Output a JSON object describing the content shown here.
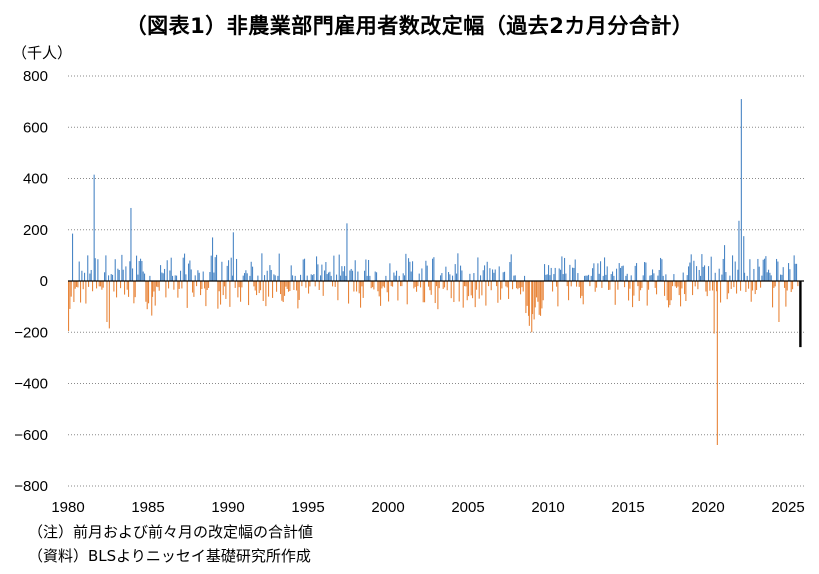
{
  "chart_data": {
    "type": "bar",
    "title": "（図表1）非農業部門雇用者数改定幅（過去2カ月分合計）",
    "ylabel": "（千人）",
    "xlabel": "",
    "ylim": [
      -800,
      800
    ],
    "xlim": [
      1980,
      2026
    ],
    "y_ticks": [
      "800",
      "600",
      "400",
      "200",
      "0",
      "−200",
      "−400",
      "−600",
      "−800"
    ],
    "x_ticks": [
      "1980",
      "1985",
      "1990",
      "1995",
      "2000",
      "2005",
      "2010",
      "2015",
      "2020",
      "2025"
    ],
    "grid": "horizontal dotted",
    "colors": {
      "positive": "#4a86c5",
      "negative": "#e8853a",
      "latest": "#000000"
    },
    "notes": [
      "（注）前月および前々月の改定幅の合計値",
      "（資料）BLSよりニッセイ基礎研究所作成"
    ],
    "highlights": [
      {
        "date": "1980.00",
        "value": -195
      },
      {
        "date": "1980.25",
        "value": 185
      },
      {
        "date": "1981.20",
        "value": 100
      },
      {
        "date": "1981.60",
        "value": 415
      },
      {
        "date": "1982.40",
        "value": -160
      },
      {
        "date": "1982.55",
        "value": -185
      },
      {
        "date": "1983.90",
        "value": 285
      },
      {
        "date": "1985.20",
        "value": -135
      },
      {
        "date": "1989.00",
        "value": 170
      },
      {
        "date": "1990.30",
        "value": 190
      },
      {
        "date": "1997.40",
        "value": 225
      },
      {
        "date": "2008.80",
        "value": -175
      },
      {
        "date": "2008.95",
        "value": -200
      },
      {
        "date": "2009.10",
        "value": -150
      },
      {
        "date": "2020.35",
        "value": -205
      },
      {
        "date": "2020.55",
        "value": -640
      },
      {
        "date": "2021.00",
        "value": 140
      },
      {
        "date": "2021.90",
        "value": 235
      },
      {
        "date": "2022.05",
        "value": 710
      },
      {
        "date": "2022.20",
        "value": 175
      },
      {
        "date": "2024.40",
        "value": -160
      },
      {
        "date": "2025.35",
        "value": 100
      },
      {
        "date": "2025.70",
        "value": -258
      }
    ]
  }
}
